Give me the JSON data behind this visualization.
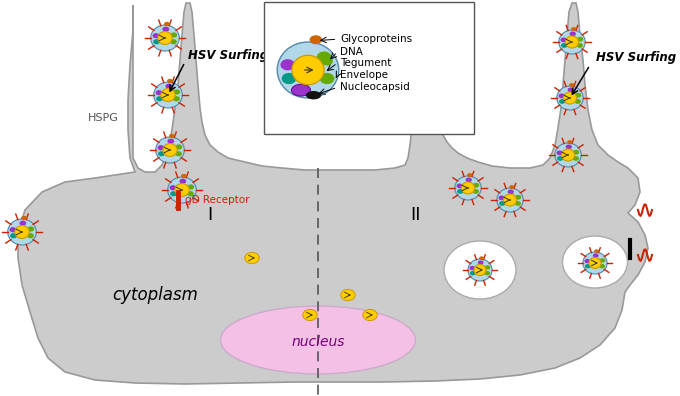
{
  "bg_color": "#ffffff",
  "cell_color": "#cccccc",
  "cell_edge_color": "#999999",
  "nucleus_color": "#f5c0e5",
  "cytoplasm_text": "cytoplasm",
  "nucleus_text": "nucleus",
  "label_I": "I",
  "label_II": "II",
  "hsv_surfing_left": "HSV Surfing",
  "hsv_surfing_right": "HSV Surfing",
  "hspg_label": "HSPG",
  "gd_receptor_label": "gD Receptor",
  "legend_labels": [
    "Glycoproteins",
    "DNA",
    "Tegument",
    "Envelope",
    "Nucleocapsid"
  ],
  "envelope_color": "#b0d8e8",
  "nucleocapsid_color": "#ffcc00",
  "spike_color": "#cc2200",
  "green_color": "#66aa00",
  "teal_color": "#009988",
  "purple_color": "#9933cc",
  "orange_color": "#cc6600",
  "dark_color": "#111111",
  "figsize": [
    6.8,
    3.96
  ],
  "dpi": 100
}
